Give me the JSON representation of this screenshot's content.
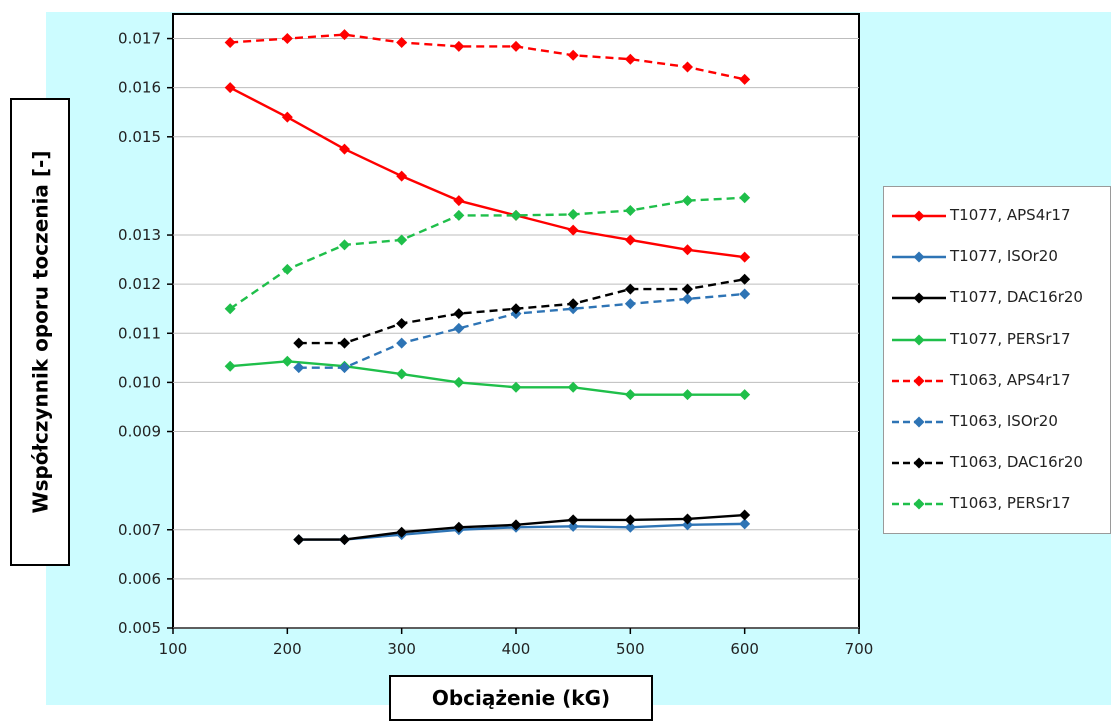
{
  "chart_data": {
    "type": "line",
    "title": "",
    "xlabel": "Obciążenie (kG)",
    "ylabel": "Współczynnik oporu toczenia [-]",
    "xlim": [
      100,
      700
    ],
    "ylim": [
      0.005,
      0.0175
    ],
    "xticks": [
      100,
      200,
      300,
      400,
      500,
      600,
      700
    ],
    "xtick_labels": [
      "100",
      "200",
      "300",
      "400",
      "500",
      "600",
      "700"
    ],
    "yticks": [
      0.005,
      0.006,
      0.007,
      0.009,
      0.01,
      0.011,
      0.012,
      0.013,
      0.015,
      0.016,
      0.017
    ],
    "ytick_labels": [
      "0.005",
      "0.006",
      "0.007",
      "0.009",
      "0.010",
      "0.011",
      "0.012",
      "0.013",
      "0.015",
      "0.016",
      "0.017"
    ],
    "grid": "horizontal",
    "legend_position": "right",
    "series": [
      {
        "name": "T1077, APS4r17",
        "color": "#ff0000",
        "dash": false,
        "x": [
          150,
          200,
          250,
          300,
          350,
          400,
          450,
          500,
          550,
          600
        ],
        "y": [
          0.016,
          0.0154,
          0.01475,
          0.0142,
          0.0137,
          0.0134,
          0.0131,
          0.0129,
          0.0127,
          0.01255
        ]
      },
      {
        "name": "T1077, ISOr20",
        "color": "#2e74b5",
        "dash": false,
        "x": [
          210,
          250,
          300,
          350,
          400,
          450,
          500,
          550,
          600
        ],
        "y": [
          0.0068,
          0.0068,
          0.0069,
          0.007,
          0.00705,
          0.00707,
          0.00705,
          0.0071,
          0.00712
        ]
      },
      {
        "name": "T1077, DAC16r20",
        "color": "#000000",
        "dash": false,
        "x": [
          210,
          250,
          300,
          350,
          400,
          450,
          500,
          550,
          600
        ],
        "y": [
          0.0068,
          0.0068,
          0.00695,
          0.00705,
          0.0071,
          0.0072,
          0.0072,
          0.00722,
          0.0073
        ]
      },
      {
        "name": "T1077, PERSr17",
        "color": "#1fbf4a",
        "dash": false,
        "x": [
          150,
          200,
          250,
          300,
          350,
          400,
          450,
          500,
          550,
          600
        ],
        "y": [
          0.01033,
          0.01043,
          0.01033,
          0.01017,
          0.01,
          0.0099,
          0.0099,
          0.00975,
          0.00975,
          0.00975
        ]
      },
      {
        "name": "T1063, APS4r17",
        "color": "#ff0000",
        "dash": true,
        "x": [
          150,
          200,
          250,
          300,
          350,
          400,
          450,
          500,
          550,
          600
        ],
        "y": [
          0.01692,
          0.017,
          0.01708,
          0.01692,
          0.01684,
          0.01684,
          0.01666,
          0.01658,
          0.01642,
          0.01617
        ]
      },
      {
        "name": "T1063, ISOr20",
        "color": "#2e74b5",
        "dash": true,
        "x": [
          210,
          250,
          300,
          350,
          400,
          450,
          500,
          550,
          600
        ],
        "y": [
          0.0103,
          0.0103,
          0.0108,
          0.0111,
          0.0114,
          0.0115,
          0.0116,
          0.0117,
          0.0118
        ]
      },
      {
        "name": "T1063, DAC16r20",
        "color": "#000000",
        "dash": true,
        "x": [
          210,
          250,
          300,
          350,
          400,
          450,
          500,
          550,
          600
        ],
        "y": [
          0.0108,
          0.0108,
          0.0112,
          0.0114,
          0.0115,
          0.0116,
          0.0119,
          0.0119,
          0.0121
        ]
      },
      {
        "name": "T1063, PERSr17",
        "color": "#1fbf4a",
        "dash": true,
        "x": [
          150,
          200,
          250,
          300,
          350,
          400,
          450,
          500,
          550,
          600
        ],
        "y": [
          0.0115,
          0.0123,
          0.0128,
          0.0129,
          0.0134,
          0.0134,
          0.01342,
          0.0135,
          0.0137,
          0.01376
        ]
      }
    ]
  }
}
